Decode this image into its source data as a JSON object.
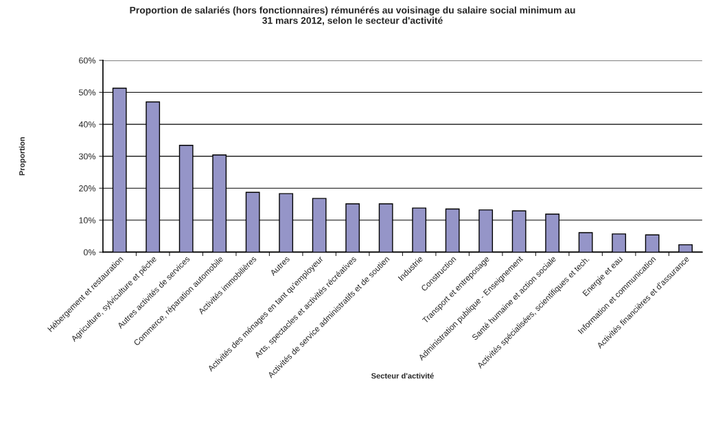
{
  "chart_data": {
    "type": "bar",
    "title": "Proportion de salariés (hors fonctionnaires) rémunérés au voisinage du salaire social minimum au\n31 mars 2012, selon le secteur d'activité",
    "xlabel": "Secteur d'activité",
    "ylabel": "Proportion",
    "categories": [
      "Hébergement et restauration",
      "Agriculture, sylviculture et pêche",
      "Autres activités de services",
      "Commerce, réparation automobile",
      "Activités immobilières",
      "Autres",
      "Activités des ménages en tant qu'employeur",
      "Arts, spectacles et activités récréatives",
      "Activités de service administratifs et de soutien",
      "Industrie",
      "Construction",
      "Transport et entreposage",
      "Administration publique - Enseignement",
      "Santé humaine et action sociale",
      "Activités spécialisées, scientifiques et tech.",
      "Energie et eau",
      "Information et communication",
      "Activités financières et d'assurance"
    ],
    "values": [
      51.3,
      47.0,
      33.4,
      30.4,
      18.7,
      18.3,
      16.8,
      15.1,
      15.1,
      13.8,
      13.5,
      13.2,
      12.9,
      11.9,
      6.1,
      5.7,
      5.4,
      2.3
    ],
    "color": "#9595c8",
    "ylim": [
      0,
      60
    ],
    "yticks": [
      {
        "value": 0,
        "label": "0%"
      },
      {
        "value": 10,
        "label": "10%"
      },
      {
        "value": 20,
        "label": "20%"
      },
      {
        "value": 30,
        "label": "30%"
      },
      {
        "value": 40,
        "label": "40%"
      },
      {
        "value": 50,
        "label": "50%"
      },
      {
        "value": 60,
        "label": "60%"
      }
    ],
    "grid": "y"
  }
}
